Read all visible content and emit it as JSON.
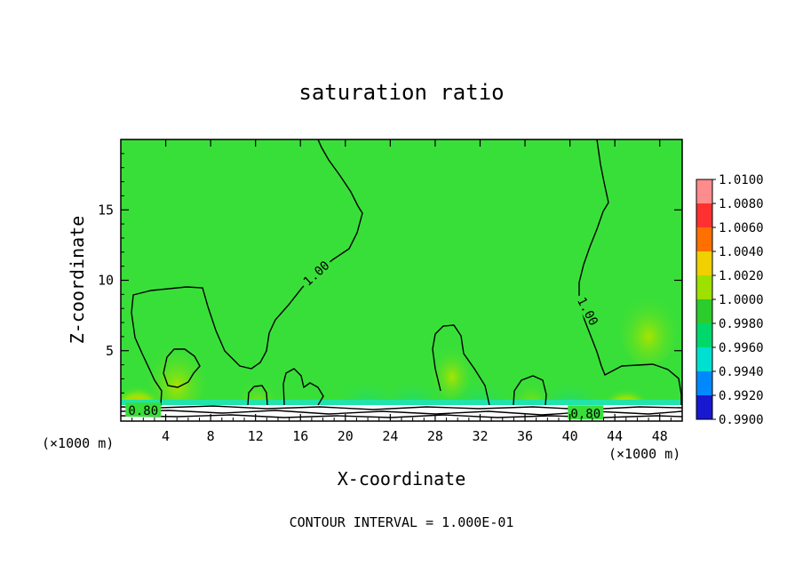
{
  "chart_data": {
    "type": "heatmap",
    "title": "saturation ratio",
    "xlabel": "X-coordinate",
    "ylabel": "Z-coordinate",
    "x_unit_left": "(×1000 m)",
    "x_unit_right": "(×1000 m)",
    "xlim": [
      0,
      50
    ],
    "ylim": [
      0,
      20
    ],
    "x_ticks": [
      4,
      8,
      12,
      16,
      20,
      24,
      28,
      32,
      36,
      40,
      44,
      48
    ],
    "y_ticks": [
      5,
      10,
      15
    ],
    "footer": "CONTOUR INTERVAL = 1.000E-01",
    "contour_labels": [
      {
        "text": "1.00",
        "x": 17.4,
        "z": 10.5,
        "angle": -42
      },
      {
        "text": "1.00",
        "x": 41.6,
        "z": 7.8,
        "angle": 62
      },
      {
        "text": "0.80",
        "x": 2.0,
        "z": 0.75,
        "angle": 0
      },
      {
        "text": "0.80",
        "x": 41.4,
        "z": 0.55,
        "angle": 0
      }
    ],
    "colorbar": {
      "levels": [
        "1.0100",
        "1.0080",
        "1.0060",
        "1.0040",
        "1.0020",
        "1.0000",
        "0.9980",
        "0.9960",
        "0.9940",
        "0.9920",
        "0.9900"
      ],
      "colors": [
        "#ff8c8c",
        "#ff3030",
        "#ff7000",
        "#f0d000",
        "#9ee000",
        "#2ccc2c",
        "#00d86c",
        "#00e0d0",
        "#0088ff",
        "#1818d0",
        "#6a1a9a"
      ]
    },
    "background_color": "#39df39",
    "hotspots": [
      {
        "x": 1.5,
        "z": 1.4,
        "value": 1.006
      },
      {
        "x": 45.0,
        "z": 1.2,
        "value": 1.005
      },
      {
        "x": 12.2,
        "z": 1.2,
        "value": 1.002
      },
      {
        "x": 36.6,
        "z": 1.1,
        "value": 1.002
      },
      {
        "x": 29.5,
        "z": 3.5,
        "value": 1.002
      },
      {
        "x": 5.0,
        "z": 3.0,
        "value": 1.001
      },
      {
        "x": 47.0,
        "z": 6.5,
        "value": 1.001
      }
    ]
  }
}
